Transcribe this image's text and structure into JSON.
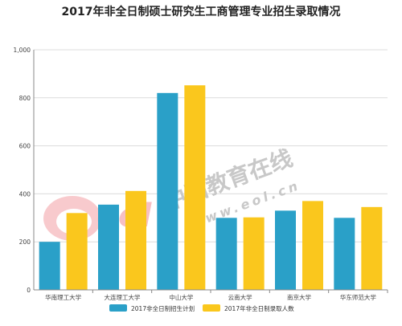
{
  "chart_data": {
    "type": "bar",
    "title": "2017年非全日制硕士研究生工商管理专业招生录取情况",
    "categories": [
      "华南理工大学",
      "大连理工大学",
      "中山大学",
      "云南大学",
      "南京大学",
      "华东师范大学"
    ],
    "series": [
      {
        "name": "2017非全日制招生计划",
        "color": "#2aa0c8",
        "values": [
          200,
          355,
          820,
          300,
          330,
          300
        ]
      },
      {
        "name": "2017年非全日制录取人数",
        "color": "#fac71d",
        "values": [
          320,
          412,
          852,
          302,
          370,
          345
        ]
      }
    ],
    "ylim": [
      0,
      1000
    ],
    "yticks": [
      0,
      200,
      400,
      600,
      800,
      1000
    ],
    "ytick_labels": [
      "0",
      "200",
      "400",
      "600",
      "800",
      "1,000"
    ],
    "xlabel": "",
    "ylabel": "",
    "grid": "horizontal",
    "legend_position": "bottom"
  },
  "watermark": {
    "logo_text": "eol",
    "brand_text": "中国教育在线",
    "url_text": "www.eol.cn"
  }
}
